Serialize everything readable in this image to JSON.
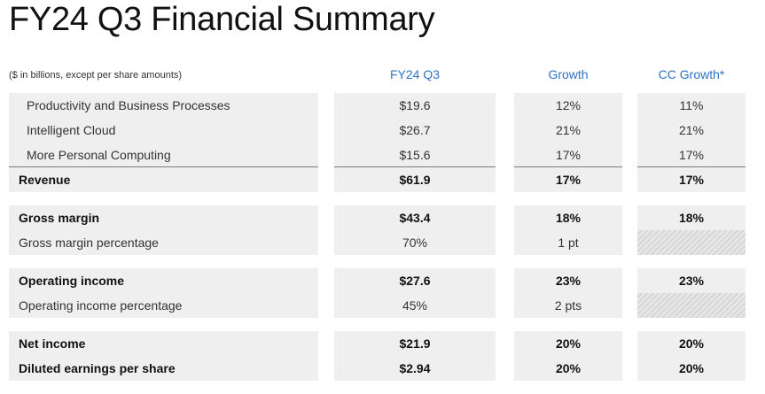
{
  "title": "FY24 Q3 Financial Summary",
  "caption": "($ in billions, except per share amounts)",
  "columns": {
    "fy": "FY24 Q3",
    "growth": "Growth",
    "cc_growth": "CC Growth*"
  },
  "rows": {
    "pbp": {
      "label": "Productivity and Business Processes",
      "fy": "$19.6",
      "growth": "12%",
      "cc": "11%"
    },
    "cloud": {
      "label": "Intelligent Cloud",
      "fy": "$26.7",
      "growth": "21%",
      "cc": "21%"
    },
    "mpc": {
      "label": "More Personal Computing",
      "fy": "$15.6",
      "growth": "17%",
      "cc": "17%"
    },
    "revenue": {
      "label": "Revenue",
      "fy": "$61.9",
      "growth": "17%",
      "cc": "17%"
    },
    "gross_margin": {
      "label": "Gross margin",
      "fy": "$43.4",
      "growth": "18%",
      "cc": "18%"
    },
    "gross_margin_pct": {
      "label": "Gross margin percentage",
      "fy": "70%",
      "growth": "1 pt",
      "cc": ""
    },
    "operating_income": {
      "label": "Operating income",
      "fy": "$27.6",
      "growth": "23%",
      "cc": "23%"
    },
    "operating_income_pct": {
      "label": "Operating income percentage",
      "fy": "45%",
      "growth": "2 pts",
      "cc": ""
    },
    "net_income": {
      "label": "Net income",
      "fy": "$21.9",
      "growth": "20%",
      "cc": "20%"
    },
    "eps": {
      "label": "Diluted earnings per share",
      "fy": "$2.94",
      "growth": "20%",
      "cc": "20%"
    }
  }
}
